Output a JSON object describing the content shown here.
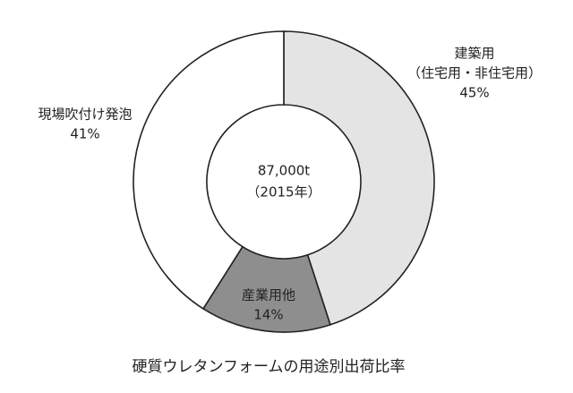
{
  "chart_data": {
    "type": "donut",
    "title": "硬質ウレタンフォームの用途別出荷比率",
    "center_label": [
      "87,000t",
      "（2015年）"
    ],
    "categories": [
      [
        "建築用",
        "（住宅用・非住宅用）"
      ],
      [
        "産業用他"
      ],
      [
        "現場吹付け発泡"
      ]
    ],
    "values": [
      45,
      14,
      41
    ],
    "value_labels": [
      "45%",
      "14%",
      "41%"
    ],
    "colors": [
      "#e4e4e4",
      "#8e8e8e",
      "#ffffff"
    ]
  }
}
